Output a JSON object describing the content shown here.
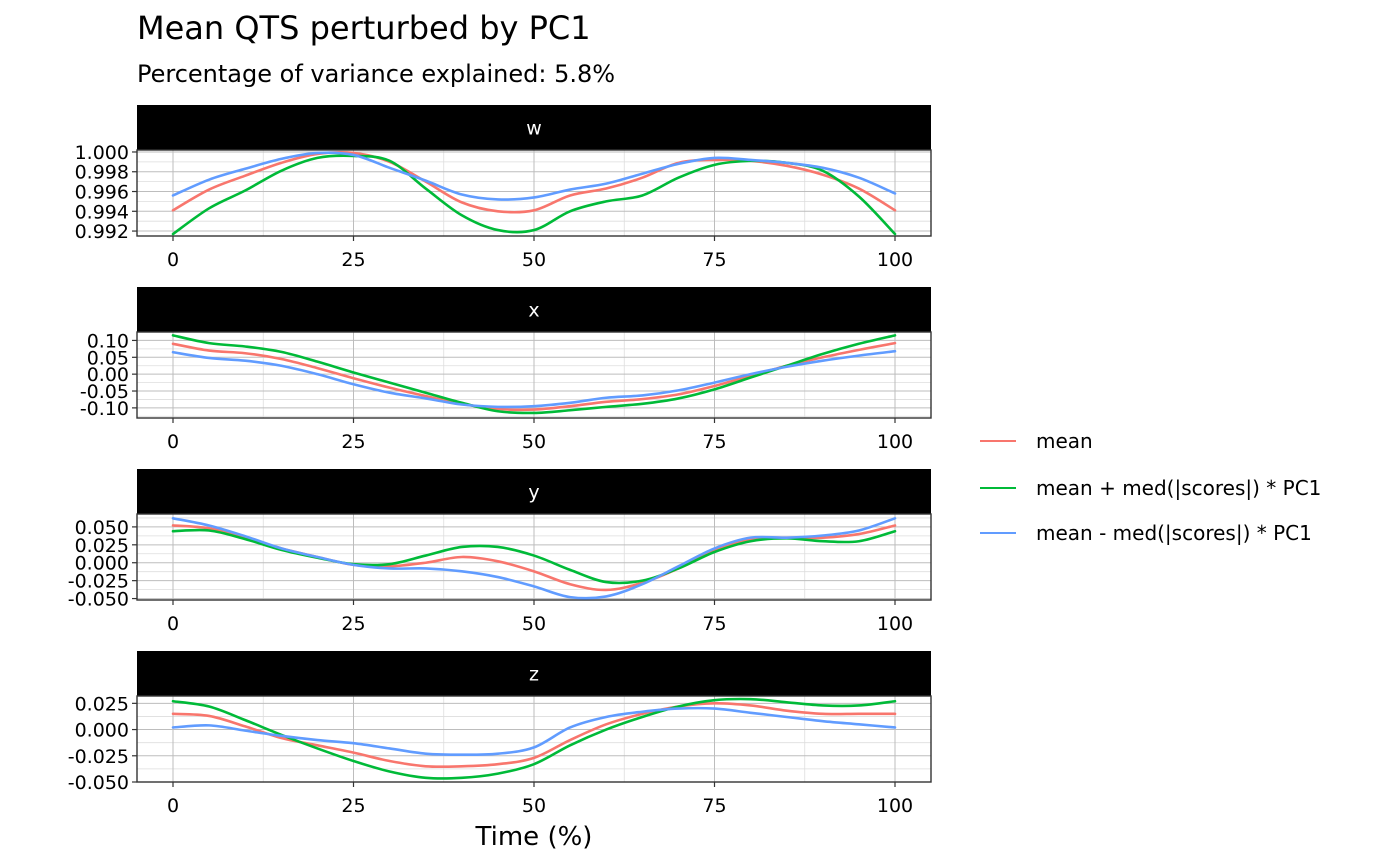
{
  "title": "Mean QTS perturbed by PC1",
  "subtitle": "Percentage of variance explained: 5.8%",
  "xlabel": "Time (%)",
  "legend": {
    "items": [
      {
        "label": "mean",
        "color": "#F8766D"
      },
      {
        "label": "mean + med(|scores|) * PC1",
        "color": "#00BA38"
      },
      {
        "label": "mean - med(|scores|) * PC1",
        "color": "#619CFF"
      }
    ]
  },
  "chart_data": {
    "type": "line",
    "title": "Mean QTS perturbed by PC1",
    "subtitle": "Percentage of variance explained: 5.8%",
    "xlabel": "Time (%)",
    "ylabel": "",
    "grid": true,
    "legend_position": "right",
    "xlim": [
      0,
      100
    ],
    "x_ticks": [
      "0",
      "25",
      "50",
      "75",
      "100"
    ],
    "x": [
      0,
      5,
      10,
      15,
      20,
      25,
      30,
      35,
      40,
      45,
      50,
      55,
      60,
      65,
      70,
      75,
      80,
      85,
      90,
      95,
      100
    ],
    "series_names": [
      "mean",
      "mean + med(|scores|) * PC1",
      "mean - med(|scores|) * PC1"
    ],
    "panels": [
      {
        "strip": "w",
        "ylim": [
          0.9915,
          1.0002
        ],
        "y_ticks": [
          "0.992",
          "0.994",
          "0.996",
          "0.998",
          "1.000"
        ],
        "y_tick_values": [
          0.992,
          0.994,
          0.996,
          0.998,
          1.0
        ],
        "series": [
          {
            "name": "mean",
            "values": [
              0.9941,
              0.9962,
              0.9976,
              0.9989,
              0.9998,
              0.9999,
              0.999,
              0.997,
              0.9949,
              0.994,
              0.9941,
              0.9956,
              0.9963,
              0.9974,
              0.9989,
              0.9992,
              0.9991,
              0.9986,
              0.9977,
              0.9963,
              0.9941
            ]
          },
          {
            "name": "mean + med(|scores|) * PC1",
            "values": [
              0.9917,
              0.9943,
              0.9961,
              0.9981,
              0.9994,
              0.9996,
              0.9991,
              0.9963,
              0.9936,
              0.9921,
              0.9921,
              0.994,
              0.995,
              0.9956,
              0.9974,
              0.9987,
              0.9991,
              0.9989,
              0.9981,
              0.9955,
              0.9917
            ]
          },
          {
            "name": "mean - med(|scores|) * PC1",
            "values": [
              0.9956,
              0.9972,
              0.9983,
              0.9993,
              0.9999,
              0.9997,
              0.9984,
              0.9971,
              0.9957,
              0.9952,
              0.9954,
              0.9962,
              0.9968,
              0.9978,
              0.9988,
              0.9994,
              0.9992,
              0.9989,
              0.9984,
              0.9974,
              0.9958
            ]
          }
        ]
      },
      {
        "strip": "x",
        "ylim": [
          -0.13,
          0.125
        ],
        "y_ticks": [
          "-0.10",
          "-0.05",
          "0.00",
          "0.05",
          "0.10"
        ],
        "y_tick_values": [
          -0.1,
          -0.05,
          0.0,
          0.05,
          0.1
        ],
        "series": [
          {
            "name": "mean",
            "values": [
              0.09,
              0.07,
              0.062,
              0.045,
              0.018,
              -0.012,
              -0.04,
              -0.065,
              -0.088,
              -0.103,
              -0.105,
              -0.095,
              -0.082,
              -0.074,
              -0.06,
              -0.035,
              -0.005,
              0.025,
              0.05,
              0.072,
              0.092
            ]
          },
          {
            "name": "mean + med(|scores|) * PC1",
            "values": [
              0.115,
              0.092,
              0.082,
              0.066,
              0.037,
              0.005,
              -0.025,
              -0.055,
              -0.085,
              -0.11,
              -0.115,
              -0.107,
              -0.097,
              -0.088,
              -0.072,
              -0.045,
              -0.01,
              0.025,
              0.06,
              0.09,
              0.115
            ]
          },
          {
            "name": "mean - med(|scores|) * PC1",
            "values": [
              0.065,
              0.048,
              0.04,
              0.025,
              0.0,
              -0.03,
              -0.055,
              -0.072,
              -0.09,
              -0.097,
              -0.095,
              -0.085,
              -0.07,
              -0.063,
              -0.048,
              -0.025,
              0.0,
              0.022,
              0.04,
              0.055,
              0.068
            ]
          }
        ]
      },
      {
        "strip": "y",
        "ylim": [
          -0.052,
          0.068
        ],
        "y_ticks": [
          "-0.050",
          "-0.025",
          "0.000",
          "0.025",
          "0.050"
        ],
        "y_tick_values": [
          -0.05,
          -0.025,
          0.0,
          0.025,
          0.05
        ],
        "series": [
          {
            "name": "mean",
            "values": [
              0.052,
              0.048,
              0.035,
              0.02,
              0.008,
              -0.003,
              -0.005,
              0.0,
              0.008,
              0.002,
              -0.012,
              -0.03,
              -0.038,
              -0.028,
              -0.008,
              0.018,
              0.033,
              0.035,
              0.035,
              0.04,
              0.052
            ]
          },
          {
            "name": "mean + med(|scores|) * PC1",
            "values": [
              0.044,
              0.045,
              0.033,
              0.018,
              0.007,
              -0.002,
              -0.002,
              0.01,
              0.022,
              0.022,
              0.01,
              -0.01,
              -0.027,
              -0.025,
              -0.008,
              0.015,
              0.03,
              0.034,
              0.03,
              0.03,
              0.044
            ]
          },
          {
            "name": "mean - med(|scores|) * PC1",
            "values": [
              0.062,
              0.052,
              0.037,
              0.02,
              0.008,
              -0.003,
              -0.008,
              -0.008,
              -0.012,
              -0.02,
              -0.033,
              -0.048,
              -0.047,
              -0.03,
              -0.005,
              0.02,
              0.035,
              0.035,
              0.038,
              0.045,
              0.062
            ]
          }
        ]
      },
      {
        "strip": "z",
        "ylim": [
          -0.05,
          0.032
        ],
        "y_ticks": [
          "-0.050",
          "-0.025",
          "0.000",
          "0.025"
        ],
        "y_tick_values": [
          -0.05,
          -0.025,
          0.0,
          0.025
        ],
        "series": [
          {
            "name": "mean",
            "values": [
              0.015,
              0.013,
              0.003,
              -0.008,
              -0.015,
              -0.022,
              -0.03,
              -0.035,
              -0.035,
              -0.033,
              -0.027,
              -0.01,
              0.005,
              0.015,
              0.022,
              0.025,
              0.023,
              0.018,
              0.015,
              0.015,
              0.015
            ]
          },
          {
            "name": "mean + med(|scores|) * PC1",
            "values": [
              0.027,
              0.022,
              0.009,
              -0.005,
              -0.018,
              -0.03,
              -0.04,
              -0.046,
              -0.046,
              -0.042,
              -0.033,
              -0.015,
              0.0,
              0.012,
              0.022,
              0.028,
              0.029,
              0.026,
              0.023,
              0.023,
              0.027
            ]
          },
          {
            "name": "mean - med(|scores|) * PC1",
            "values": [
              0.002,
              0.004,
              -0.001,
              -0.006,
              -0.01,
              -0.013,
              -0.018,
              -0.023,
              -0.024,
              -0.023,
              -0.017,
              0.002,
              0.012,
              0.017,
              0.02,
              0.02,
              0.016,
              0.012,
              0.008,
              0.005,
              0.002
            ]
          }
        ]
      }
    ]
  }
}
